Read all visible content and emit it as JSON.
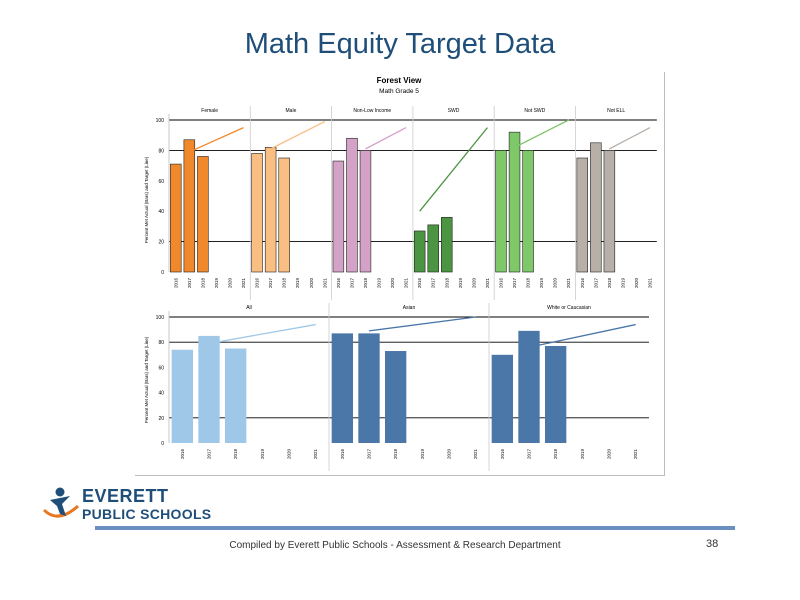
{
  "slide": {
    "title": "Math Equity Target Data",
    "footer_text": "Compiled  by Everett Public Schools - Assessment & Research Department",
    "page_number": "38"
  },
  "logo": {
    "line1": "EVERETT",
    "line2": "PUBLIC SCHOOLS",
    "icon": "person-figure-logo-icon",
    "colors": {
      "blue": "#1f4e79",
      "orange": "#e87722"
    }
  },
  "chart_data": {
    "type": "bar",
    "title": "Forest View",
    "subtitle": "Math Grade 5",
    "ylabel": "Percent Met Actual (Bars) and Target (Line)",
    "ylim": [
      0,
      100
    ],
    "yticks": [
      0,
      20,
      40,
      60,
      80,
      100
    ],
    "reference_lines": [
      20,
      80,
      100
    ],
    "categories": [
      "2016",
      "2017",
      "2018",
      "2019",
      "2020",
      "2021"
    ],
    "panels": [
      {
        "name": "Female",
        "row": 1,
        "color": "#f0892c",
        "values": [
          71,
          87,
          76,
          null,
          null,
          null
        ],
        "target": [
          [
            2017,
            79
          ],
          [
            2021,
            95
          ]
        ]
      },
      {
        "name": "Male",
        "row": 1,
        "color": "#f9bf82",
        "values": [
          78,
          82,
          75,
          null,
          null,
          null
        ],
        "target": [
          [
            2017,
            81
          ],
          [
            2021,
            99
          ]
        ]
      },
      {
        "name": "Non-Low Income",
        "row": 1,
        "color": "#d4a2c6",
        "values": [
          73,
          88,
          80,
          null,
          null,
          null
        ],
        "target": [
          [
            2018,
            81
          ],
          [
            2021,
            95
          ]
        ]
      },
      {
        "name": "SWD",
        "row": 1,
        "color": "#4b9441",
        "values": [
          27,
          31,
          36,
          null,
          null,
          null
        ],
        "target": [
          [
            2016,
            40
          ],
          [
            2021,
            95
          ]
        ]
      },
      {
        "name": "Not SWD",
        "row": 1,
        "color": "#7ec86a",
        "values": [
          80,
          92,
          80,
          null,
          null,
          null
        ],
        "target": [
          [
            2017,
            82
          ],
          [
            2021,
            100
          ]
        ]
      },
      {
        "name": "Not ELL",
        "row": 1,
        "color": "#b8b0a8",
        "values": [
          75,
          85,
          80,
          null,
          null,
          null
        ],
        "target": [
          [
            2018,
            81
          ],
          [
            2021,
            95
          ]
        ]
      },
      {
        "name": "All",
        "row": 2,
        "color": "#9fc8e8",
        "values": [
          74,
          85,
          75,
          null,
          null,
          null
        ],
        "target": [
          [
            2017,
            79
          ],
          [
            2021,
            94
          ]
        ]
      },
      {
        "name": "Asian",
        "row": 2,
        "color": "#4a76a8",
        "values": [
          87,
          87,
          73,
          null,
          null,
          null
        ],
        "target": [
          [
            2017,
            89
          ],
          [
            2021,
            100
          ]
        ]
      },
      {
        "name": "White or Caucasian",
        "row": 2,
        "color": "#4a76a8",
        "values": [
          70,
          89,
          77,
          null,
          null,
          null
        ],
        "target": [
          [
            2017,
            76
          ],
          [
            2021,
            94
          ]
        ]
      }
    ]
  }
}
